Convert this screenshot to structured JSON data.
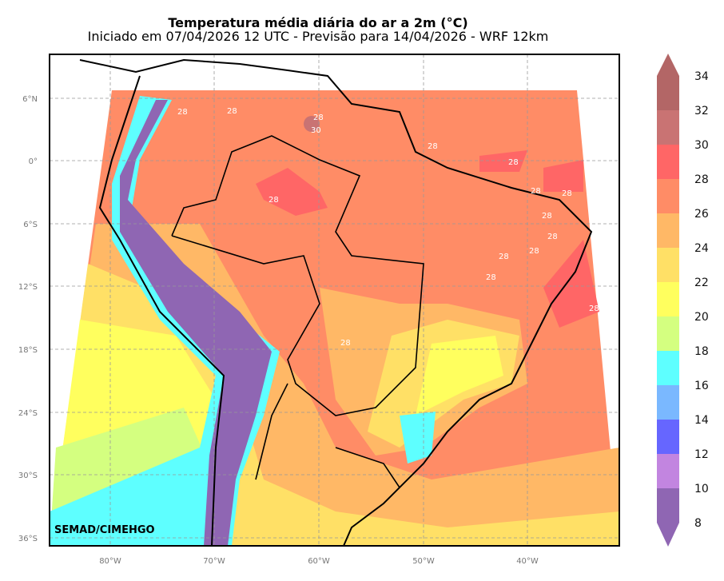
{
  "title": "Temperatura média diária do ar a 2m (°C)",
  "subtitle": "Iniciado em 07/04/2026 12 UTC - Previsão para 14/04/2026 - WRF 12km",
  "credit": "SEMAD/CIMEHGO",
  "lat_ticks": [
    "6°N",
    "0°",
    "6°S",
    "12°S",
    "18°S",
    "24°S",
    "30°S",
    "36°S"
  ],
  "lon_ticks": [
    "80°W",
    "70°W",
    "60°W",
    "50°W",
    "40°W"
  ],
  "colorbar": {
    "ticks": [
      "34",
      "32",
      "30",
      "28",
      "26",
      "24",
      "22",
      "20",
      "18",
      "16",
      "14",
      "12",
      "10",
      "8"
    ],
    "colors": [
      "#b36666",
      "#c97373",
      "#ff6666",
      "#ff8c66",
      "#ffb866",
      "#ffe066",
      "#ffff5e",
      "#d4ff80",
      "#5effff",
      "#7ab8ff",
      "#6666ff",
      "#c285e0",
      "#8f66b3"
    ]
  },
  "contour_labels": [
    "28",
    "28",
    "28",
    "30",
    "28",
    "28",
    "28",
    "28",
    "28",
    "28",
    "28",
    "28",
    "28",
    "28",
    "28",
    "28"
  ]
}
